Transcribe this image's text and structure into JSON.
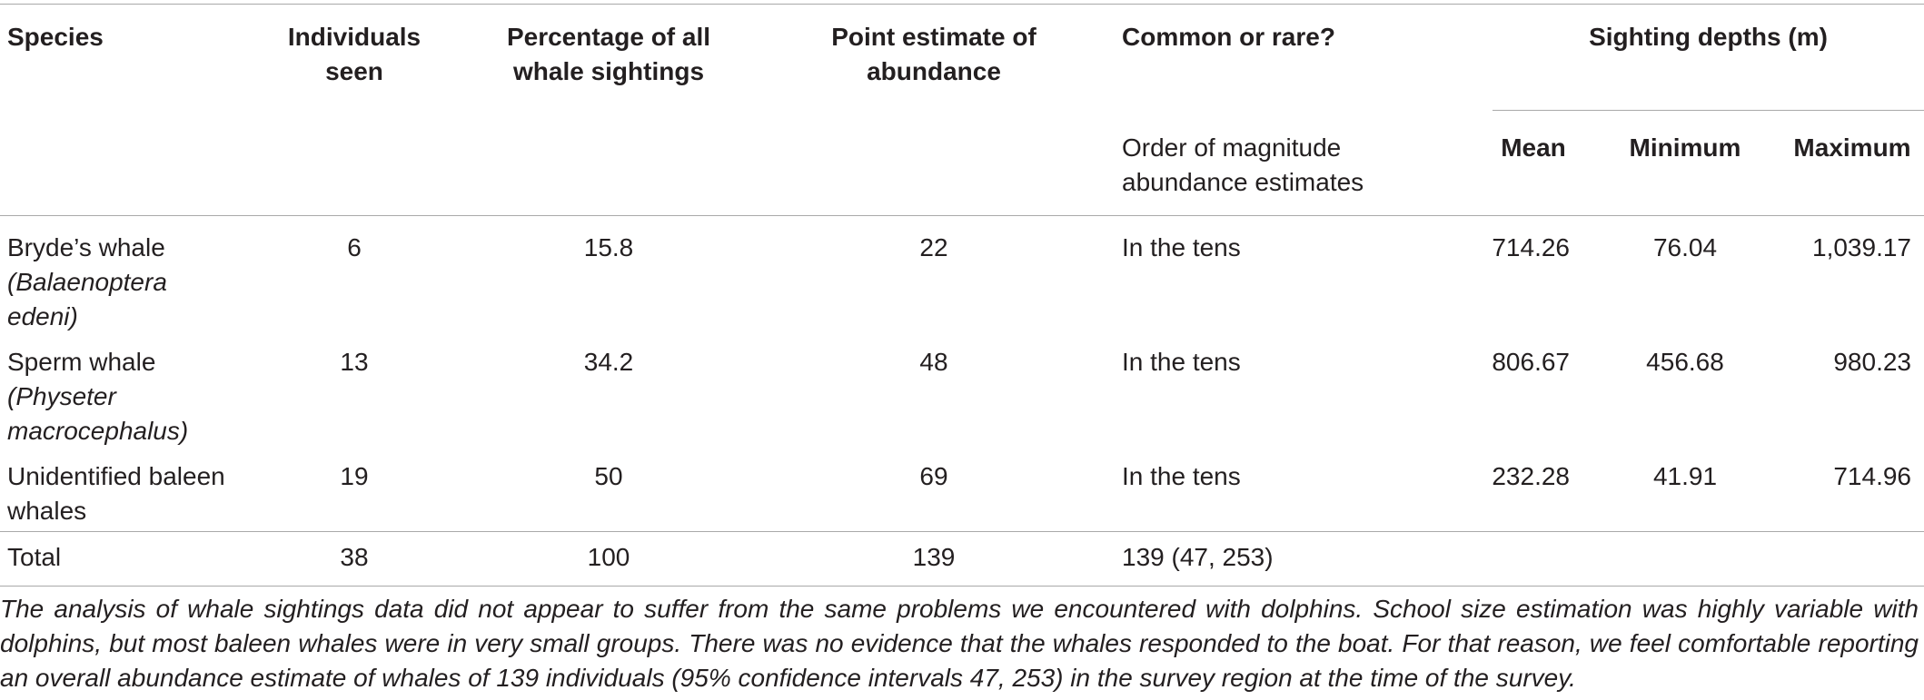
{
  "headers": {
    "species": "Species",
    "individuals": [
      "Individuals",
      "seen"
    ],
    "percentage": [
      "Percentage of all",
      "whale sightings"
    ],
    "point_estimate": [
      "Point estimate of",
      "abundance"
    ],
    "common_rare": "Common or rare?",
    "order_of_magnitude": [
      "Order of magnitude",
      "abundance estimates"
    ],
    "sighting_depths": "Sighting depths (m)",
    "mean": "Mean",
    "minimum": "Minimum",
    "maximum": "Maximum"
  },
  "rows": [
    {
      "species_lines": [
        "Bryde’s whale"
      ],
      "species_latin": [
        "(Balaenoptera",
        "edeni)"
      ],
      "individuals": "6",
      "percentage": "15.8",
      "point_estimate": "22",
      "common_rare": "In the tens",
      "mean": "714.26",
      "minimum": "76.04",
      "maximum": "1,039.17"
    },
    {
      "species_lines": [
        "Sperm whale"
      ],
      "species_latin": [
        "(Physeter",
        "macrocephalus)"
      ],
      "individuals": "13",
      "percentage": "34.2",
      "point_estimate": "48",
      "common_rare": "In the tens",
      "mean": "806.67",
      "minimum": "456.68",
      "maximum": "980.23"
    },
    {
      "species_lines": [
        "Unidentified baleen",
        "whales"
      ],
      "species_latin": [],
      "individuals": "19",
      "percentage": "50",
      "point_estimate": "69",
      "common_rare": "In the tens",
      "mean": "232.28",
      "minimum": "41.91",
      "maximum": "714.96"
    }
  ],
  "total": {
    "label": "Total",
    "individuals": "38",
    "percentage": "100",
    "point_estimate": "139",
    "common_rare": "139 (47, 253)"
  },
  "caption": "The analysis of whale sightings data did not appear to suffer from the same problems we encountered with dolphins. School size estimation was highly variable with dolphins, but most baleen whales were in very small groups. There was no evidence that the whales responded to the boat. For that reason, we feel comfortable reporting an overall abundance estimate of whales of 139 individuals (95% confidence intervals 47, 253) in the survey region at the time of the survey."
}
